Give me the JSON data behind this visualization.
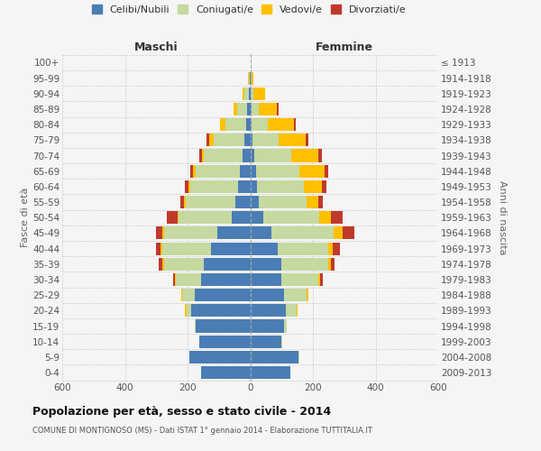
{
  "age_groups": [
    "0-4",
    "5-9",
    "10-14",
    "15-19",
    "20-24",
    "25-29",
    "30-34",
    "35-39",
    "40-44",
    "45-49",
    "50-54",
    "55-59",
    "60-64",
    "65-69",
    "70-74",
    "75-79",
    "80-84",
    "85-89",
    "90-94",
    "95-99",
    "100+"
  ],
  "birth_years": [
    "2009-2013",
    "2004-2008",
    "1999-2003",
    "1994-1998",
    "1989-1993",
    "1984-1988",
    "1979-1983",
    "1974-1978",
    "1969-1973",
    "1964-1968",
    "1959-1963",
    "1954-1958",
    "1949-1953",
    "1944-1948",
    "1939-1943",
    "1934-1938",
    "1929-1933",
    "1924-1928",
    "1919-1923",
    "1914-1918",
    "≤ 1913"
  ],
  "maschi": {
    "celibi": [
      158,
      193,
      163,
      173,
      188,
      178,
      158,
      148,
      125,
      105,
      60,
      48,
      38,
      32,
      25,
      18,
      12,
      10,
      5,
      2,
      0
    ],
    "coniugati": [
      0,
      0,
      0,
      5,
      15,
      38,
      78,
      128,
      155,
      170,
      168,
      158,
      152,
      142,
      122,
      98,
      68,
      32,
      15,
      3,
      0
    ],
    "vedove": [
      0,
      0,
      0,
      0,
      5,
      5,
      5,
      5,
      5,
      5,
      5,
      5,
      6,
      8,
      8,
      15,
      15,
      12,
      5,
      2,
      0
    ],
    "divorziate": [
      0,
      0,
      0,
      0,
      0,
      0,
      6,
      10,
      16,
      22,
      32,
      12,
      12,
      8,
      8,
      8,
      0,
      0,
      0,
      0,
      0
    ]
  },
  "femmine": {
    "nubili": [
      128,
      153,
      98,
      108,
      115,
      108,
      100,
      98,
      88,
      68,
      42,
      28,
      22,
      18,
      12,
      8,
      5,
      5,
      2,
      0,
      0
    ],
    "coniugate": [
      0,
      5,
      5,
      8,
      32,
      72,
      118,
      152,
      162,
      198,
      178,
      152,
      148,
      138,
      118,
      82,
      52,
      22,
      8,
      2,
      0
    ],
    "vedove": [
      0,
      0,
      0,
      0,
      5,
      5,
      5,
      8,
      14,
      28,
      38,
      38,
      58,
      82,
      88,
      88,
      82,
      58,
      38,
      8,
      2
    ],
    "divorziate": [
      0,
      0,
      0,
      0,
      0,
      0,
      10,
      10,
      22,
      38,
      38,
      15,
      15,
      12,
      10,
      8,
      5,
      5,
      0,
      0,
      0
    ]
  },
  "colors": {
    "celibi": "#4a7db5",
    "coniugati": "#c5d9a0",
    "vedove": "#ffc000",
    "divorziate": "#c0392b"
  },
  "legend_labels": [
    "Celibi/Nubili",
    "Coniugati/e",
    "Vedovi/e",
    "Divorziati/e"
  ],
  "title": "Popolazione per età, sesso e stato civile - 2014",
  "subtitle": "COMUNE DI MONTIGNOSO (MS) - Dati ISTAT 1° gennaio 2014 - Elaborazione TUTTITALIA.IT",
  "ylabel_left": "Fasce di età",
  "ylabel_right": "Anni di nascita",
  "label_maschi": "Maschi",
  "label_femmine": "Femmine",
  "xlim": 600,
  "xticks": [
    -600,
    -400,
    -200,
    0,
    200,
    400,
    600
  ],
  "xtick_labels": [
    "600",
    "400",
    "200",
    "0",
    "200",
    "400",
    "600"
  ],
  "background_color": "#f5f5f5",
  "grid_color": "#cccccc"
}
